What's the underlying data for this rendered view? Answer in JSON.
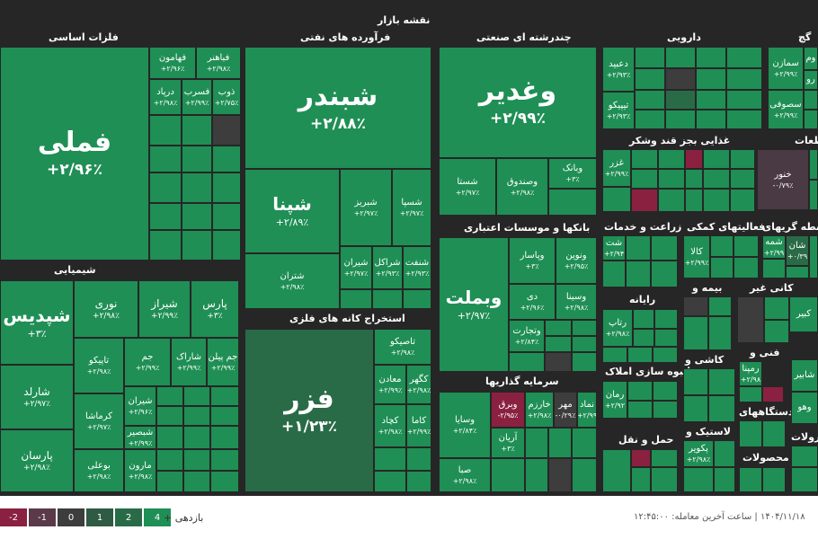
{
  "map_title": "نقشه بازار",
  "colors": {
    "background": "#262626",
    "green_4": "#1f8f55",
    "green_2": "#2a6b47",
    "grey": "#3d3d3d",
    "red_2": "#8a2140",
    "red_1": "#5a3a48"
  },
  "sections": [
    {
      "id": "sec-fellezat",
      "title": "فلزات اساسی"
    },
    {
      "id": "sec-faravardeh",
      "title": "فرآورده های نفتی"
    },
    {
      "id": "sec-chandreshteh",
      "title": "چندرشته ای صنعتی"
    },
    {
      "id": "sec-darooei",
      "title": "دارویی"
    },
    {
      "id": "sec-gach",
      "title": "گچ"
    },
    {
      "id": "sec-shimiaei",
      "title": "شیمیایی"
    },
    {
      "id": "sec-estekhraj",
      "title": "استخراج کانه های فلزی"
    },
    {
      "id": "sec-bankha",
      "title": "بانکها و موسسات اعتباری"
    },
    {
      "id": "sec-sarmayeh",
      "title": "سرمایه گذاریها"
    },
    {
      "id": "sec-ghaza",
      "title": "غذایی بجز قند وشکر"
    },
    {
      "id": "sec-qatat",
      "title": "قطعات"
    },
    {
      "id": "sec-zeraat",
      "title": "زراعت و خدمات"
    },
    {
      "id": "sec-faaliat",
      "title": "فعالیتهای کمکی"
    },
    {
      "id": "sec-vaseteh",
      "title": "واسطه گریهای"
    },
    {
      "id": "sec-rayaneh",
      "title": "رایانه"
    },
    {
      "id": "sec-bimeh",
      "title": "بیمه و"
    },
    {
      "id": "sec-kani",
      "title": "کانی غیر"
    },
    {
      "id": "sec-anboh",
      "title": "انبوه سازی املاک"
    },
    {
      "id": "sec-kashi",
      "title": "کاشی و"
    },
    {
      "id": "sec-fani",
      "title": "فنی و"
    },
    {
      "id": "sec-dastgah",
      "title": "دستگاههای"
    },
    {
      "id": "sec-haml",
      "title": "حمل و نقل"
    },
    {
      "id": "sec-lastik",
      "title": "لاستیک و"
    },
    {
      "id": "sec-mahsoolat1",
      "title": "محصولات"
    },
    {
      "id": "sec-mahsoolat2",
      "title": "محصولات"
    }
  ],
  "tiles": [
    {
      "name": "فملی",
      "pct": "+۲/۹۶٪"
    },
    {
      "name": "فهامون",
      "pct": "+۲/۹۶٪"
    },
    {
      "name": "فباهنر",
      "pct": "+۲/۹۸٪"
    },
    {
      "name": "درپاد",
      "pct": "+۲/۹۸٪"
    },
    {
      "name": "فسرب",
      "pct": "+۲/۹۹٪"
    },
    {
      "name": "ذوب",
      "pct": "+۲/۷۵٪"
    },
    {
      "name": "شبندر",
      "pct": "+۲/۸۸٪"
    },
    {
      "name": "شپنا",
      "pct": "+۲/۸۹٪"
    },
    {
      "name": "شبریز",
      "pct": "+۲/۹۷٪"
    },
    {
      "name": "شسپا",
      "pct": "+۲/۹۷٪"
    },
    {
      "name": "شتران",
      "pct": "+۲/۹۸٪"
    },
    {
      "name": "شیران",
      "pct": "+۲/۹۷٪"
    },
    {
      "name": "شراکل",
      "pct": "+۲/۹۳٪"
    },
    {
      "name": "شنفت",
      "pct": "+۲/۹۳٪"
    },
    {
      "name": "وغدیر",
      "pct": "+۲/۹۹٪"
    },
    {
      "name": "شستا",
      "pct": "+۲/۹۷٪"
    },
    {
      "name": "وصندوق",
      "pct": "+۲/۹۸٪"
    },
    {
      "name": "وبانک",
      "pct": "+۳٪"
    },
    {
      "name": "دعبید",
      "pct": "+۲/۹۳٪"
    },
    {
      "name": "تیپیکو",
      "pct": "+۲/۹۳٪"
    },
    {
      "name": "سمازن",
      "pct": "+۲/۹۹٪"
    },
    {
      "name": "سصوفی",
      "pct": "+۲/۹۹٪"
    },
    {
      "name": "شپدیس",
      "pct": "+۳٪"
    },
    {
      "name": "نوری",
      "pct": "+۲/۹۸٪"
    },
    {
      "name": "شیراز",
      "pct": "+۲/۹۹٪"
    },
    {
      "name": "پارس",
      "pct": "+۳٪"
    },
    {
      "name": "شارلد",
      "pct": "+۲/۹۷٪"
    },
    {
      "name": "تاپیکو",
      "pct": "+۲/۹۸٪"
    },
    {
      "name": "جم",
      "pct": "+۲/۹۹٪"
    },
    {
      "name": "شاراک",
      "pct": "+۲/۹۹٪"
    },
    {
      "name": "جم پیلن",
      "pct": "+۲/۹۹٪"
    },
    {
      "name": "کرماشا",
      "pct": "+۲/۹۷٪"
    },
    {
      "name": "شیران",
      "pct": "+۲/۹۶٪"
    },
    {
      "name": "شبصیر",
      "pct": "+۲/۹۹٪"
    },
    {
      "name": "پارسان",
      "pct": "+۲/۹۸٪"
    },
    {
      "name": "بوعلی",
      "pct": "+۲/۹۸٪"
    },
    {
      "name": "مارون",
      "pct": "+۲/۹۸٪"
    },
    {
      "name": "فزر",
      "pct": "+۱/۲۳٪"
    },
    {
      "name": "تاصیکو",
      "pct": "+۲/۹۸٪"
    },
    {
      "name": "معادن",
      "pct": "+۲/۹۹٪"
    },
    {
      "name": "کگهر",
      "pct": "+۲/۹۸٪"
    },
    {
      "name": "کچاد",
      "pct": "+۲/۹۸٪"
    },
    {
      "name": "کاما",
      "pct": "+۲/۹۹٪"
    },
    {
      "name": "وبملت",
      "pct": "+۲/۹۷٪"
    },
    {
      "name": "وپاسار",
      "pct": "+۳٪"
    },
    {
      "name": "ونوین",
      "pct": "+۲/۹۵٪"
    },
    {
      "name": "دی",
      "pct": "+۲/۹۶٪"
    },
    {
      "name": "وسینا",
      "pct": "+۲/۹۸٪"
    },
    {
      "name": "وتجارت",
      "pct": "+۲/۸۴٪"
    },
    {
      "name": "وسایا",
      "pct": "+۲/۸۴٪"
    },
    {
      "name": "وبرق",
      "pct": "-۲/۹۵٪"
    },
    {
      "name": "خارزم",
      "pct": "+۲/۹۸٪"
    },
    {
      "name": "مهر",
      "pct": "-۰/۲۹٪"
    },
    {
      "name": "نماد",
      "pct": "+۲/۹۹"
    },
    {
      "name": "آریان",
      "pct": "+۳٪"
    },
    {
      "name": "صبا",
      "pct": "+۲/۹۸٪"
    },
    {
      "name": "غزر",
      "pct": "+۲/۹۹٪"
    },
    {
      "name": "خنور",
      "pct": "-۰/۷۹٪"
    },
    {
      "name": "شت",
      "pct": "+۲/۹۴"
    },
    {
      "name": "کالا",
      "pct": "+۲/۹۹٪"
    },
    {
      "name": "شمه",
      "pct": "+۲/۹۹"
    },
    {
      "name": "شان",
      "pct": "+۰/۳۹"
    },
    {
      "name": "رتاپ",
      "pct": "+۲/۹۸٪"
    },
    {
      "name": "رمان",
      "pct": "+۲/۹۲"
    },
    {
      "name": "رمپنا",
      "pct": "+۲/۹۸"
    },
    {
      "name": "وهو",
      "pct": ""
    },
    {
      "name": "پکویر",
      "pct": "+۲/۹۸٪"
    }
  ],
  "extra_labels": {
    "ghach_word": "وم",
    "gh_word": "رو",
    "kabir": "کبیر",
    "shabir": "شابیر",
    "zolat": "زولات",
    "anboh_short": "انبوه سازی املاک",
    "lastik_full": "لاستیک و",
    "lastik_text": "لاستیک",
    "qat_title": "طعات"
  },
  "legend": {
    "label": "بازدهی +",
    "items": [
      {
        "value": "4",
        "color": "#1f8f55"
      },
      {
        "value": "2",
        "color": "#2a6b47"
      },
      {
        "value": "1",
        "color": "#2f5a44"
      },
      {
        "value": "0",
        "color": "#3d3d3d"
      },
      {
        "value": "-1",
        "color": "#5a3a48"
      },
      {
        "value": "-2",
        "color": "#8a2140"
      }
    ]
  },
  "update_text": "۱۴۰۴/۱۱/۱۸ | ساعت آخرین معامله: ۱۲:۴۵:۰۰"
}
